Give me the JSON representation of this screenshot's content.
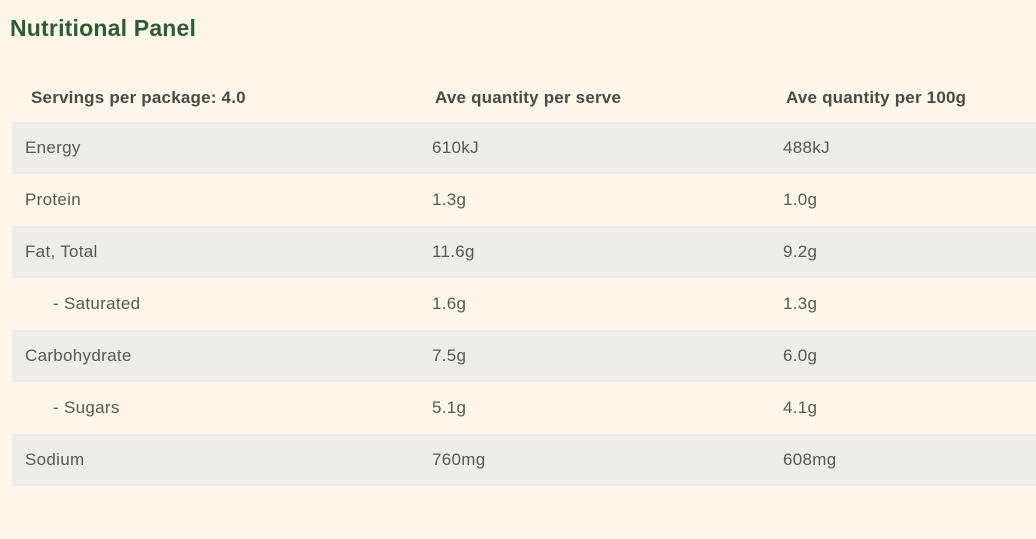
{
  "page": {
    "title": "Nutritional Panel",
    "background_color": "#FDF7EB",
    "title_color": "#2E5B36"
  },
  "table": {
    "headers": {
      "servings": "Servings per package: 4.0",
      "per_serve": "Ave quantity per serve",
      "per_100g": "Ave quantity per 100g"
    },
    "colors": {
      "striped_row": "#EDEDEB",
      "header_text": "#4C4A46",
      "body_text": "#5A5752"
    },
    "rows": [
      {
        "nutrient": "Energy",
        "per_serve": "610kJ",
        "per_100g": "488kJ",
        "indent": false
      },
      {
        "nutrient": "Protein",
        "per_serve": "1.3g",
        "per_100g": "1.0g",
        "indent": false
      },
      {
        "nutrient": "Fat, Total",
        "per_serve": "11.6g",
        "per_100g": "9.2g",
        "indent": false
      },
      {
        "nutrient": "- Saturated",
        "per_serve": "1.6g",
        "per_100g": "1.3g",
        "indent": true
      },
      {
        "nutrient": "Carbohydrate",
        "per_serve": "7.5g",
        "per_100g": "6.0g",
        "indent": false
      },
      {
        "nutrient": "- Sugars",
        "per_serve": "5.1g",
        "per_100g": "4.1g",
        "indent": true
      },
      {
        "nutrient": "Sodium",
        "per_serve": "760mg",
        "per_100g": "608mg",
        "indent": false
      }
    ]
  }
}
